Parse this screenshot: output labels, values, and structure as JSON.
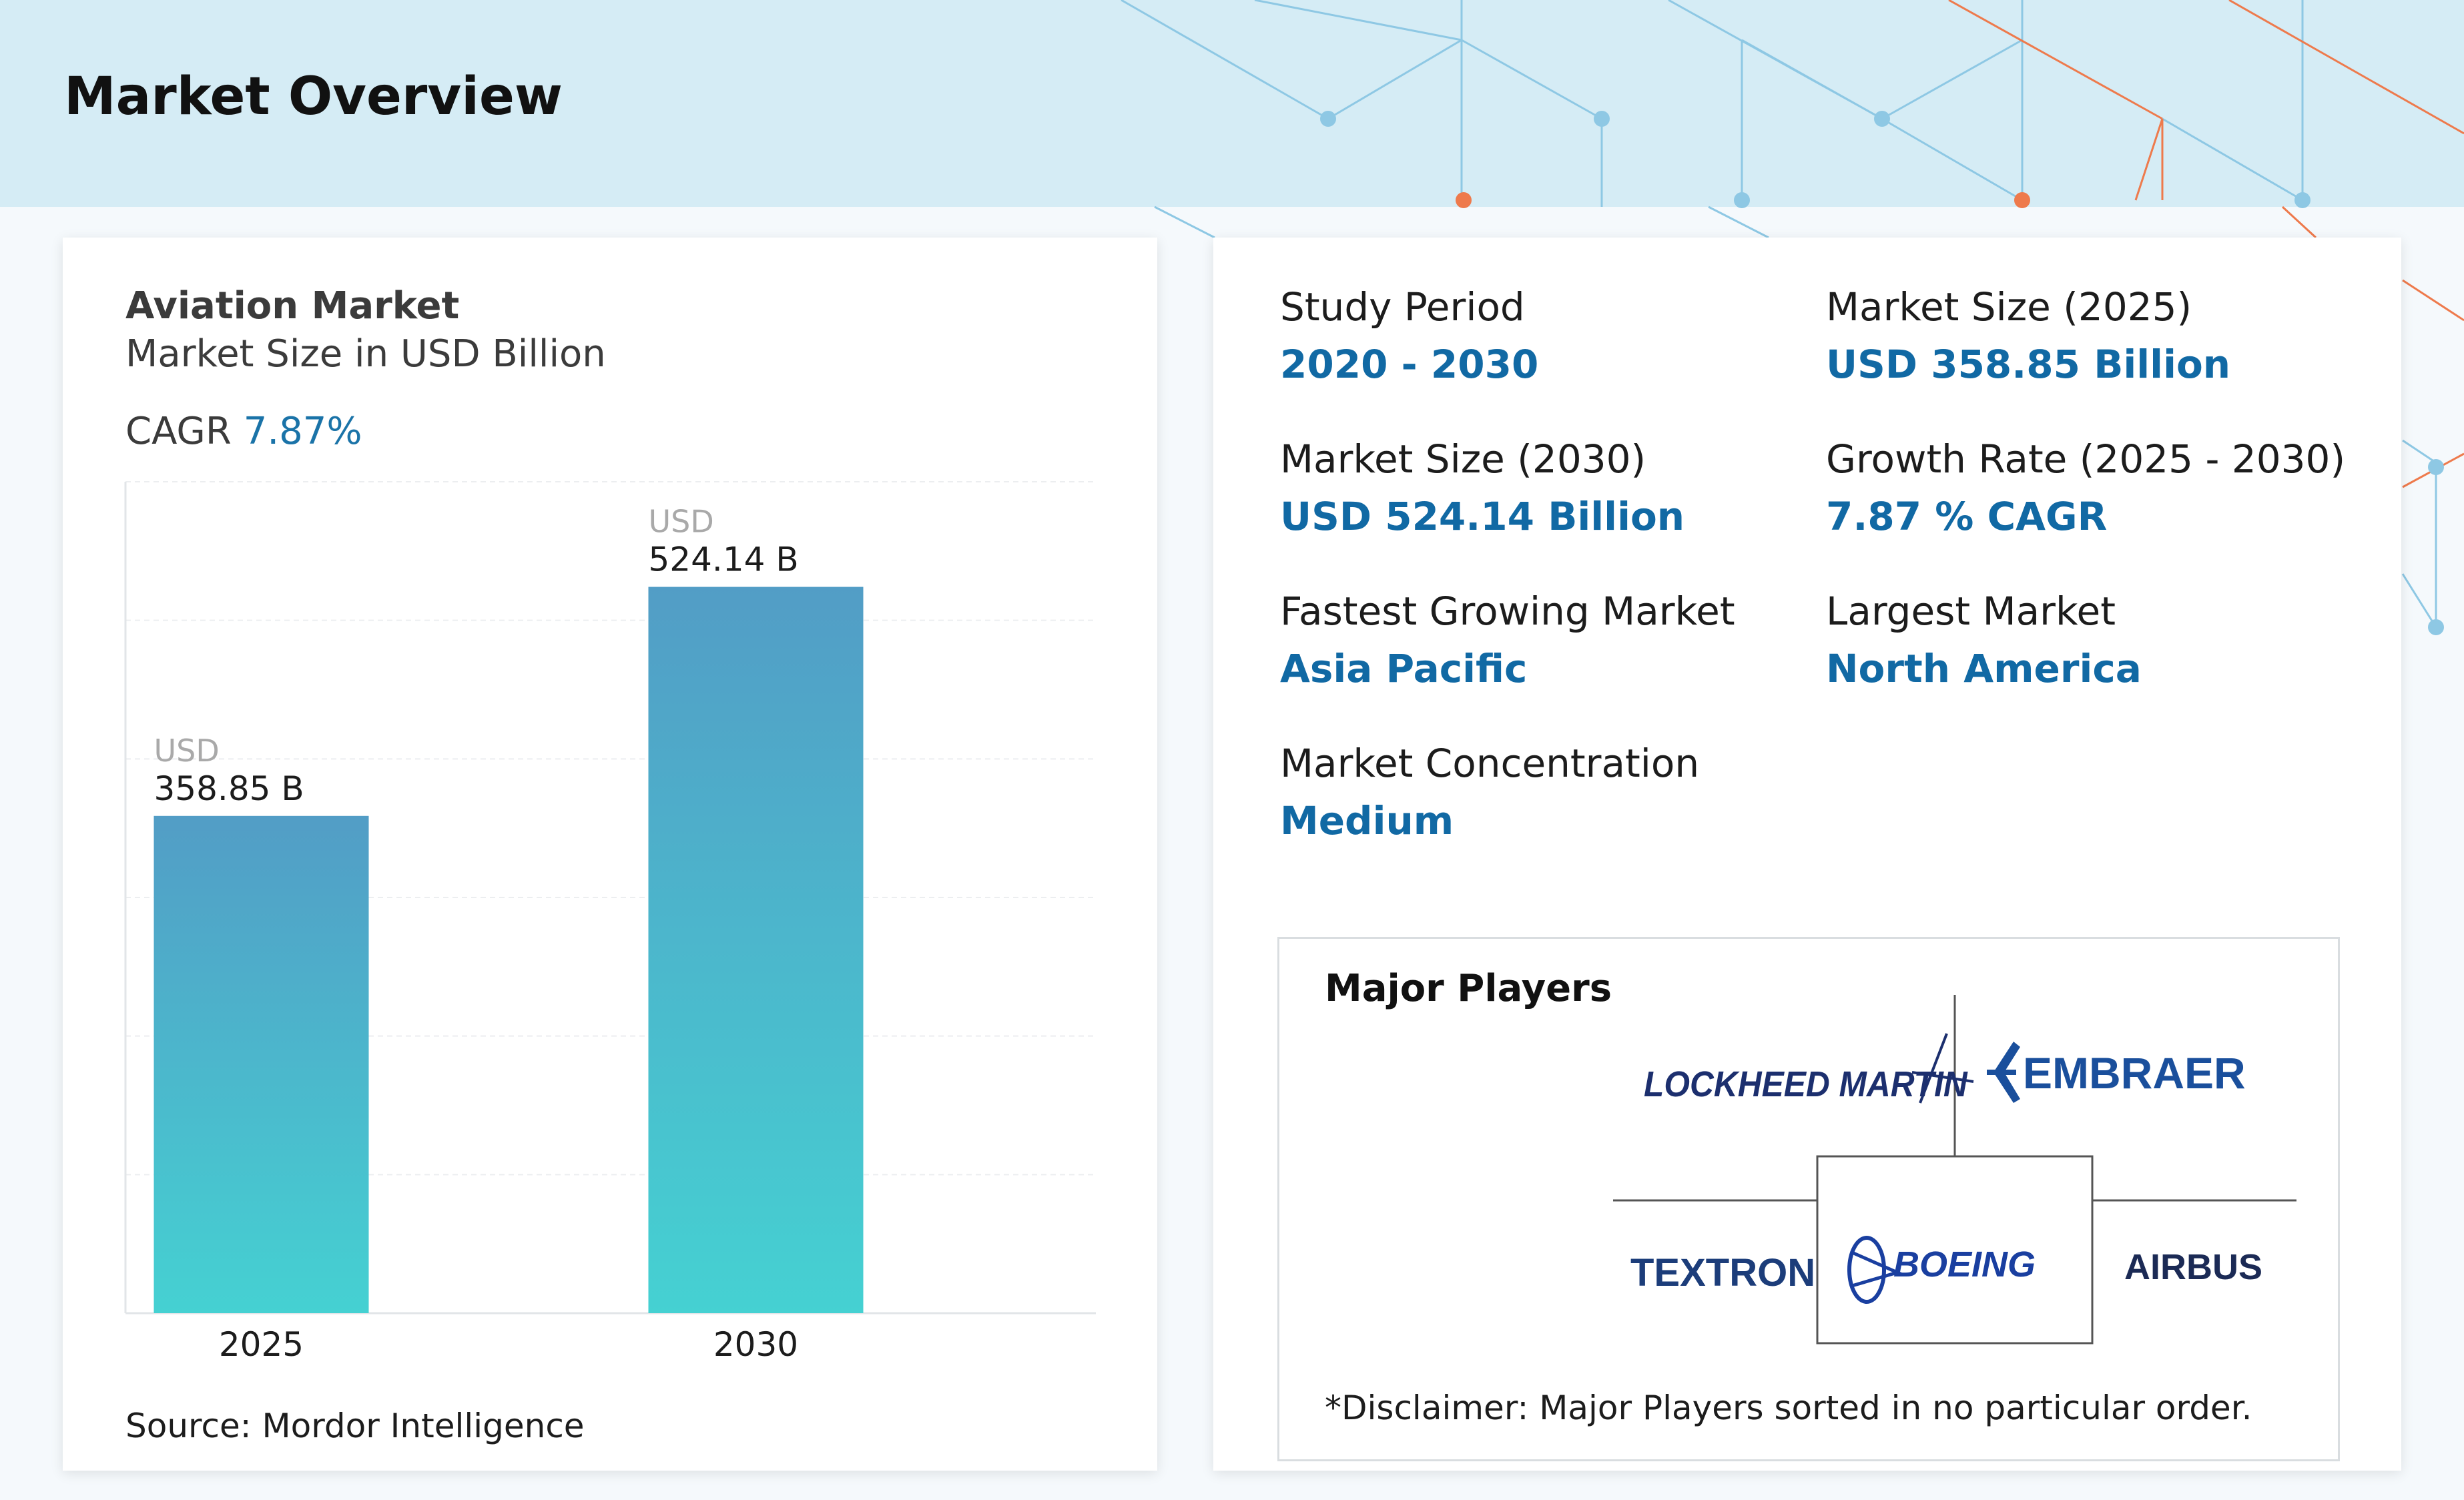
{
  "page": {
    "title": "Market Overview"
  },
  "chart_card": {
    "title": "Aviation Market",
    "subtitle": "Market Size in USD Billion",
    "cagr_label": "CAGR",
    "cagr_value": "7.87%",
    "source": "Source: Mordor Intelligence"
  },
  "chart_data": {
    "type": "bar",
    "categories": [
      "2025",
      "2030"
    ],
    "values": [
      358.85,
      524.14
    ],
    "value_prefix": "USD",
    "value_labels": [
      "358.85 B",
      "524.14 B"
    ],
    "title": "Aviation Market",
    "subtitle": "Market Size in USD Billion",
    "xlabel": "",
    "ylabel": "",
    "ylim": [
      0,
      600
    ],
    "grid": true,
    "bar_gradient": [
      "#529dc6",
      "#45d1d2"
    ]
  },
  "stats": {
    "study_period": {
      "label": "Study Period",
      "value": "2020 - 2030"
    },
    "market_size_2025": {
      "label": "Market Size (2025)",
      "value": "USD 358.85 Billion"
    },
    "market_size_2030": {
      "label": "Market Size (2030)",
      "value": "USD 524.14 Billion"
    },
    "growth_rate": {
      "label": "Growth Rate (2025 - 2030)",
      "value": "7.87 % CAGR"
    },
    "fastest_growing": {
      "label": "Fastest Growing Market",
      "value": "Asia Pacific"
    },
    "largest_market": {
      "label": "Largest Market",
      "value": "North America"
    },
    "concentration": {
      "label": "Market Concentration",
      "value": "Medium"
    }
  },
  "players": {
    "title": "Major Players",
    "logos": {
      "lockheed": "LOCKHEED MARTIN",
      "embraer": "EMBRAER",
      "textron": "TEXTRON",
      "boeing": "BOEING",
      "airbus": "AIRBUS"
    },
    "disclaimer": "*Disclaimer: Major Players sorted in no particular order."
  },
  "colors": {
    "accent": "#1169a4",
    "header_band": "#d5ecf5",
    "network_blue": "#7fc0e0",
    "network_orange": "#f08050"
  }
}
